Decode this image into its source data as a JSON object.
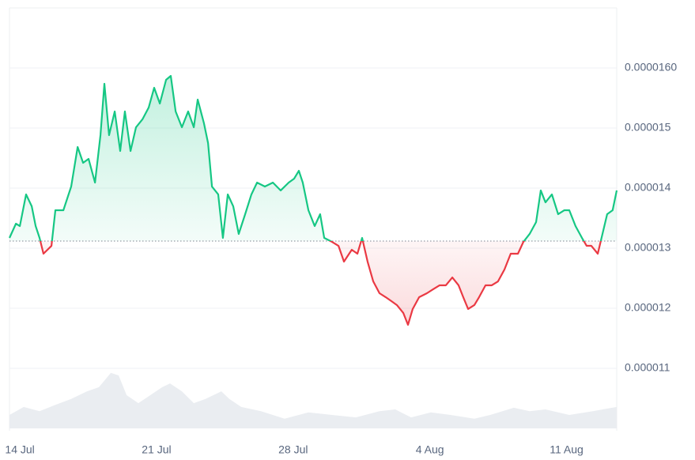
{
  "chart_data": {
    "type": "baseline-line",
    "x": [
      -0.53,
      -0.2,
      0,
      0.32,
      0.61,
      0.81,
      1.01,
      1.21,
      1.62,
      1.82,
      2.23,
      2.63,
      2.96,
      3.24,
      3.52,
      3.85,
      4.13,
      4.33,
      4.57,
      4.86,
      5.14,
      5.38,
      5.67,
      5.95,
      6.28,
      6.6,
      6.88,
      7.17,
      7.49,
      7.73,
      7.98,
      8.3,
      8.62,
      8.91,
      9.11,
      9.43,
      9.64,
      9.84,
      10.16,
      10.4,
      10.65,
      10.93,
      11.21,
      11.54,
      11.86,
      12.15,
      12.55,
      12.96,
      13.36,
      13.77,
      14.05,
      14.29,
      14.49,
      14.78,
      15.1,
      15.38,
      15.59,
      15.99,
      16.32,
      16.6,
      17,
      17.29,
      17.53,
      17.81,
      18.1,
      18.42,
      18.74,
      19.03,
      19.31,
      19.64,
      19.88,
      20.12,
      20.45,
      20.85,
      21.17,
      21.5,
      21.82,
      22.15,
      22.47,
      22.71,
      22.96,
      23.28,
      23.52,
      23.85,
      24.17,
      24.49,
      24.82,
      25.14,
      25.51,
      25.79,
      26.11,
      26.44,
      26.68,
      26.92,
      27.25,
      27.57,
      27.89,
      28.14,
      28.46,
      28.79,
      29.03,
      29.27,
      29.6,
      29.84,
      30.08,
      30.36,
      30.57
    ],
    "values": [
      1.3171e-05,
      1.3408e-05,
      1.3368e-05,
      1.3895e-05,
      1.3697e-05,
      1.3368e-05,
      1.3171e-05,
      1.2908e-05,
      1.3039e-05,
      1.3632e-05,
      1.3632e-05,
      1.4026e-05,
      1.4684e-05,
      1.4421e-05,
      1.4487e-05,
      1.4092e-05,
      1.4882e-05,
      1.5737e-05,
      1.4882e-05,
      1.5276e-05,
      1.4618e-05,
      1.5276e-05,
      1.4618e-05,
      1.5013e-05,
      1.5145e-05,
      1.5342e-05,
      1.5671e-05,
      1.5408e-05,
      1.5803e-05,
      1.5868e-05,
      1.5276e-05,
      1.5013e-05,
      1.5276e-05,
      1.5013e-05,
      1.5474e-05,
      1.5079e-05,
      1.475e-05,
      1.4026e-05,
      1.3895e-05,
      1.3171e-05,
      1.3895e-05,
      1.3697e-05,
      1.3237e-05,
      1.3566e-05,
      1.3895e-05,
      1.4092e-05,
      1.4026e-05,
      1.4092e-05,
      1.3961e-05,
      1.4092e-05,
      1.4158e-05,
      1.4289e-05,
      1.4092e-05,
      1.3632e-05,
      1.3368e-05,
      1.3566e-05,
      1.3171e-05,
      1.3105e-05,
      1.3039e-05,
      1.2776e-05,
      1.2974e-05,
      1.2908e-05,
      1.3171e-05,
      1.2776e-05,
      1.2447e-05,
      1.225e-05,
      1.2184e-05,
      1.2118e-05,
      1.2053e-05,
      1.1921e-05,
      1.1724e-05,
      1.1987e-05,
      1.2184e-05,
      1.225e-05,
      1.2316e-05,
      1.2382e-05,
      1.2382e-05,
      1.2513e-05,
      1.2382e-05,
      1.2184e-05,
      1.1987e-05,
      1.2053e-05,
      1.2184e-05,
      1.2382e-05,
      1.2382e-05,
      1.2447e-05,
      1.2645e-05,
      1.2908e-05,
      1.2908e-05,
      1.3105e-05,
      1.3237e-05,
      1.3434e-05,
      1.3961e-05,
      1.3763e-05,
      1.3895e-05,
      1.3566e-05,
      1.3632e-05,
      1.3632e-05,
      1.3368e-05,
      1.3171e-05,
      1.3039e-05,
      1.3039e-05,
      1.2908e-05,
      1.3237e-05,
      1.3566e-05,
      1.3632e-05,
      1.3961e-05
    ],
    "baseline": 1.3118e-05,
    "up_color": "#16c784",
    "down_color": "#ea3943",
    "volume": {
      "color": "#eaedf1",
      "x": [
        -0.53,
        0.2,
        1.01,
        1.82,
        2.63,
        3.44,
        4.05,
        4.66,
        5.06,
        5.47,
        6.07,
        6.68,
        7.29,
        7.69,
        8.3,
        8.91,
        9.51,
        10.32,
        10.73,
        11.34,
        12.35,
        13.56,
        14.78,
        15.99,
        17.21,
        18.42,
        19.23,
        20.04,
        21.05,
        22.06,
        23.28,
        24.09,
        25.3,
        26.11,
        26.92,
        28.14,
        29.35,
        30.57
      ],
      "values": [
        3.2,
        5.1,
        4.1,
        5.6,
        7.0,
        8.8,
        9.8,
        13.2,
        12.6,
        7.9,
        6.0,
        7.9,
        9.8,
        10.7,
        8.8,
        6.0,
        7.0,
        8.8,
        7.0,
        5.1,
        4.1,
        2.3,
        3.8,
        3.2,
        2.6,
        4.1,
        4.5,
        2.6,
        3.8,
        3.2,
        2.3,
        3.2,
        4.9,
        4.1,
        4.5,
        3.2,
        4.1,
        5.1
      ]
    },
    "xlim": [
      -0.53,
      30.57
    ],
    "xticks": [
      {
        "value": 0,
        "label": "14 Jul"
      },
      {
        "value": 7,
        "label": "21 Jul"
      },
      {
        "value": 14,
        "label": "28 Jul"
      },
      {
        "value": 21,
        "label": "4 Aug"
      },
      {
        "value": 28,
        "label": "11 Aug"
      }
    ],
    "ylim": [
      1e-05,
      1.7e-05
    ],
    "yticks": [
      {
        "value": 1.6e-05,
        "label": "0.0000160"
      },
      1.5e-05,
      1.4e-05,
      1.3e-05,
      1.2e-05,
      1.1e-05
    ],
    "y2lim": [
      0,
      100
    ],
    "grid": true
  }
}
